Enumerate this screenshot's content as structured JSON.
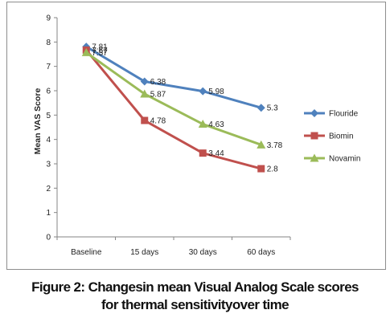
{
  "chart_data": {
    "type": "line",
    "ylabel": "Mean VAS Score",
    "xlabel": "",
    "categories": [
      "Baseline",
      "15 days",
      "30 days",
      "60 days"
    ],
    "ylim": [
      0,
      9
    ],
    "yticks": [
      "0",
      "1",
      "2",
      "3",
      "4",
      "5",
      "6",
      "7",
      "8",
      "9"
    ],
    "grid": false,
    "legend_position": "right",
    "series": [
      {
        "name": "Flouride",
        "color": "#4f81bd",
        "marker": "diamond",
        "values": [
          7.81,
          6.38,
          5.98,
          5.3
        ],
        "labels": [
          "7.81",
          "6.38",
          "5.98",
          "5.3"
        ]
      },
      {
        "name": "Biomin",
        "color": "#c0504d",
        "marker": "square",
        "values": [
          7.67,
          4.78,
          3.44,
          2.8
        ],
        "labels": [
          "7.67",
          "4.78",
          "3.44",
          "2.8"
        ]
      },
      {
        "name": "Novamin",
        "color": "#9bbb59",
        "marker": "triangle",
        "values": [
          7.57,
          5.87,
          4.63,
          3.78
        ],
        "labels": [
          "7.57",
          "5.87",
          "4.63",
          "3.78"
        ]
      }
    ]
  },
  "caption": {
    "line1": "Figure 2: Changesin mean Visual Analog Scale scores",
    "line2": "for thermal sensitivityover time"
  }
}
